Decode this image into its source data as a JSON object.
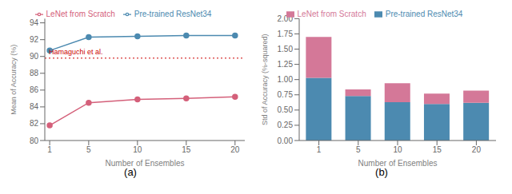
{
  "chart_data": [
    {
      "type": "line",
      "caption": "(a)",
      "x": [
        1,
        5,
        10,
        15,
        20
      ],
      "xlim": [
        0.5,
        21
      ],
      "xticks": [
        1,
        5,
        10,
        15,
        20
      ],
      "ylim": [
        80,
        94.5
      ],
      "yticks": [
        80,
        82,
        84,
        86,
        88,
        90,
        92,
        94
      ],
      "xlabel": "Number of Ensembles",
      "ylabel": "Mean of Accuracy (%)",
      "grid": false,
      "legend": "top",
      "series": [
        {
          "name": "Pre-trained ResNet34",
          "color": "#4c8ab0",
          "marker": "circle",
          "values": [
            90.7,
            92.3,
            92.4,
            92.5,
            92.5
          ]
        },
        {
          "name": "LeNet from Scratch",
          "color": "#d4607a",
          "marker": "circle",
          "values": [
            81.8,
            84.5,
            84.9,
            85.0,
            85.2
          ]
        }
      ],
      "reference_lines": [
        {
          "y": 89.8,
          "label": "Hamaguchi et al.",
          "color": "#cc0000",
          "line_style": "dotted"
        }
      ]
    },
    {
      "type": "bar",
      "caption": "(b)",
      "stacked": true,
      "categories": [
        "1",
        "5",
        "10",
        "15",
        "20"
      ],
      "ylim": [
        0,
        2.0
      ],
      "yticks": [
        {
          "value": 0,
          "label": "0.00"
        },
        {
          "value": 0.25,
          "label": "0.25"
        },
        {
          "value": 0.5,
          "label": "0.50"
        },
        {
          "value": 0.75,
          "label": "0.75"
        },
        {
          "value": 1.0,
          "label": "1.00"
        },
        {
          "value": 1.25,
          "label": "1.25"
        },
        {
          "value": 1.5,
          "label": "1.50"
        },
        {
          "value": 1.75,
          "label": "1.75"
        },
        {
          "value": 2.0,
          "label": "2.00"
        }
      ],
      "xlabel": "Number of Ensembles",
      "ylabel": "Std of Accuracy (%-squared)",
      "grid": false,
      "legend": "top",
      "series": [
        {
          "name": "Pre-trained ResNet34",
          "color": "#4c8ab0",
          "values": [
            1.03,
            0.73,
            0.63,
            0.6,
            0.62
          ]
        },
        {
          "name": "LeNet from Scratch",
          "color": "#d47898",
          "values": [
            0.67,
            0.11,
            0.31,
            0.17,
            0.2
          ]
        }
      ]
    }
  ]
}
